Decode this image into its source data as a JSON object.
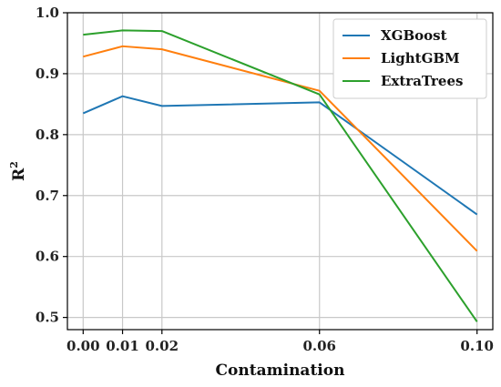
{
  "chart_data": {
    "type": "line",
    "xlabel": "Contamination",
    "ylabel_base": "R",
    "ylabel_sup": "2",
    "x": [
      0.0,
      0.01,
      0.02,
      0.06,
      0.1
    ],
    "x_tick_labels": [
      "0.00",
      "0.01",
      "0.02",
      "0.06",
      "0.10"
    ],
    "y_ticks": [
      0.5,
      0.6,
      0.7,
      0.8,
      0.9,
      1.0
    ],
    "y_tick_labels": [
      "0.5",
      "0.6",
      "0.7",
      "0.8",
      "0.9",
      "1.0"
    ],
    "xlim": [
      -0.004,
      0.104
    ],
    "ylim": [
      0.48,
      1.0
    ],
    "grid": true,
    "legend_position": "top-right",
    "series": [
      {
        "name": "XGBoost",
        "color": "#1f77b4",
        "values": [
          0.835,
          0.863,
          0.847,
          0.853,
          0.669
        ]
      },
      {
        "name": "LightGBM",
        "color": "#ff7f0e",
        "values": [
          0.928,
          0.945,
          0.94,
          0.872,
          0.609
        ]
      },
      {
        "name": "ExtraTrees",
        "color": "#2ca02c",
        "values": [
          0.964,
          0.971,
          0.97,
          0.866,
          0.493
        ]
      }
    ]
  }
}
